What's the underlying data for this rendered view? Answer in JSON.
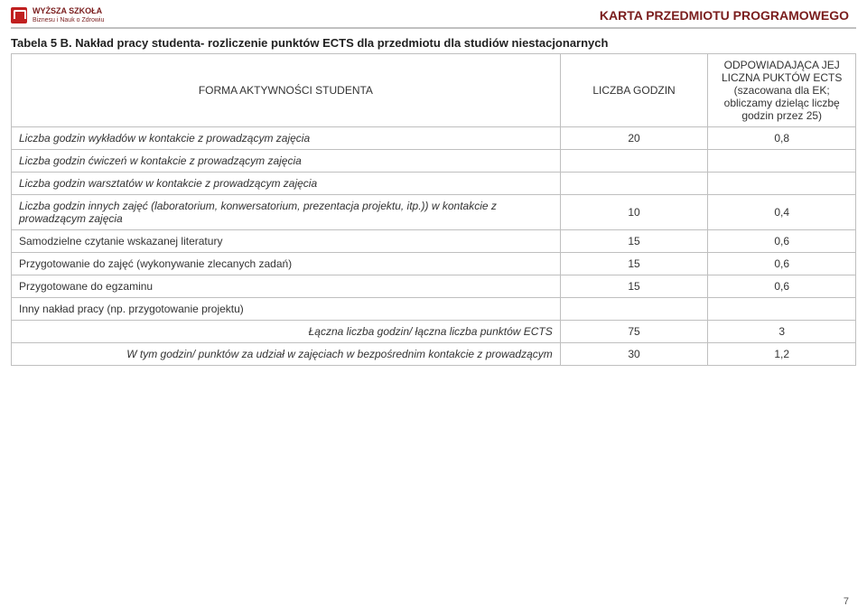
{
  "header": {
    "logo_line1": "WYŻSZA SZKOŁA",
    "logo_line2": "Biznesu i Nauk o Zdrowiu",
    "title": "KARTA PRZEDMIOTU PROGRAMOWEGO"
  },
  "table": {
    "title": "Tabela 5 B. Nakład pracy studenta- rozliczenie punktów ECTS dla przedmiotu dla studiów niestacjonarnych",
    "col_form": "FORMA AKTYWNOŚCI STUDENTA",
    "col_hours": "LICZBA GODZIN",
    "col_ects_l1": "ODPOWIADAJĄCA JEJ LICZNA PUKTÓW ECTS",
    "col_ects_l2": "(szacowana dla EK; obliczamy dzieląc liczbę godzin przez 25)",
    "rows": [
      {
        "label": "Liczba godzin wykładów w kontakcie z prowadzącym zajęcia",
        "hours": "20",
        "ects": "0,8",
        "italic": true
      },
      {
        "label": "Liczba godzin ćwiczeń w kontakcie z prowadzącym zajęcia",
        "hours": "",
        "ects": "",
        "italic": true
      },
      {
        "label": "Liczba godzin warsztatów w kontakcie z prowadzącym zajęcia",
        "hours": "",
        "ects": "",
        "italic": true
      },
      {
        "label": "Liczba godzin innych zajęć (laboratorium, konwersatorium, prezentacja projektu, itp.)) w kontakcie  z prowadzącym zajęcia",
        "hours": "10",
        "ects": "0,4",
        "italic": true
      },
      {
        "label": "Samodzielne czytanie wskazanej literatury",
        "hours": "15",
        "ects": "0,6",
        "italic": false
      },
      {
        "label": "Przygotowanie do zajęć (wykonywanie zlecanych zadań)",
        "hours": "15",
        "ects": "0,6",
        "italic": false
      },
      {
        "label": "Przygotowane do egzaminu",
        "hours": "15",
        "ects": "0,6",
        "italic": false
      },
      {
        "label": "Inny nakład pracy (np. przygotowanie projektu)",
        "hours": "",
        "ects": "",
        "italic": false
      }
    ],
    "total_label": "Łączna liczba godzin/ łączna liczba punktów ECTS",
    "total_hours": "75",
    "total_ects": "3",
    "direct_label": "W tym godzin/ punktów za udział w zajęciach w bezpośrednim kontakcie z prowadzącym",
    "direct_hours": "30",
    "direct_ects": "1,2"
  },
  "page_number": "7",
  "colors": {
    "brand": "#7a1d1d",
    "border": "#bfbfbf",
    "rule": "#c0c0c0",
    "text": "#333333"
  }
}
